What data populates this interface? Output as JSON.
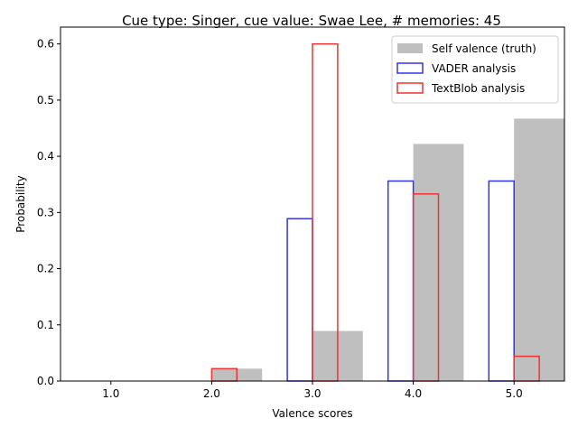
{
  "chart_data": {
    "type": "bar",
    "title": "Cue type: Singer, cue value: Swae Lee, # memories: 45",
    "xlabel": "Valence scores",
    "ylabel": "Probability",
    "categories": [
      "1.0",
      "2.0",
      "3.0",
      "4.0",
      "5.0"
    ],
    "x": [
      1.0,
      2.0,
      3.0,
      4.0,
      5.0
    ],
    "xlim": [
      0.5,
      5.5
    ],
    "ylim": [
      0,
      0.63
    ],
    "yticks": [
      0.0,
      0.1,
      0.2,
      0.3,
      0.4,
      0.5,
      0.6
    ],
    "ytick_labels": [
      "0.0",
      "0.1",
      "0.2",
      "0.3",
      "0.4",
      "0.5",
      "0.6"
    ],
    "grid": false,
    "legend_position": "top-right",
    "series": [
      {
        "name": "Self valence (truth)",
        "style": "filled",
        "color": "#bfbfbf",
        "values": [
          0.0,
          0.022,
          0.089,
          0.422,
          0.467
        ]
      },
      {
        "name": "VADER analysis",
        "style": "outline",
        "color": "#3333ee",
        "values": [
          0.0,
          0.0,
          0.289,
          0.356,
          0.356
        ]
      },
      {
        "name": "TextBlob analysis",
        "style": "outline",
        "color": "#ee3333",
        "values": [
          0.0,
          0.022,
          0.6,
          0.333,
          0.044
        ]
      }
    ]
  }
}
